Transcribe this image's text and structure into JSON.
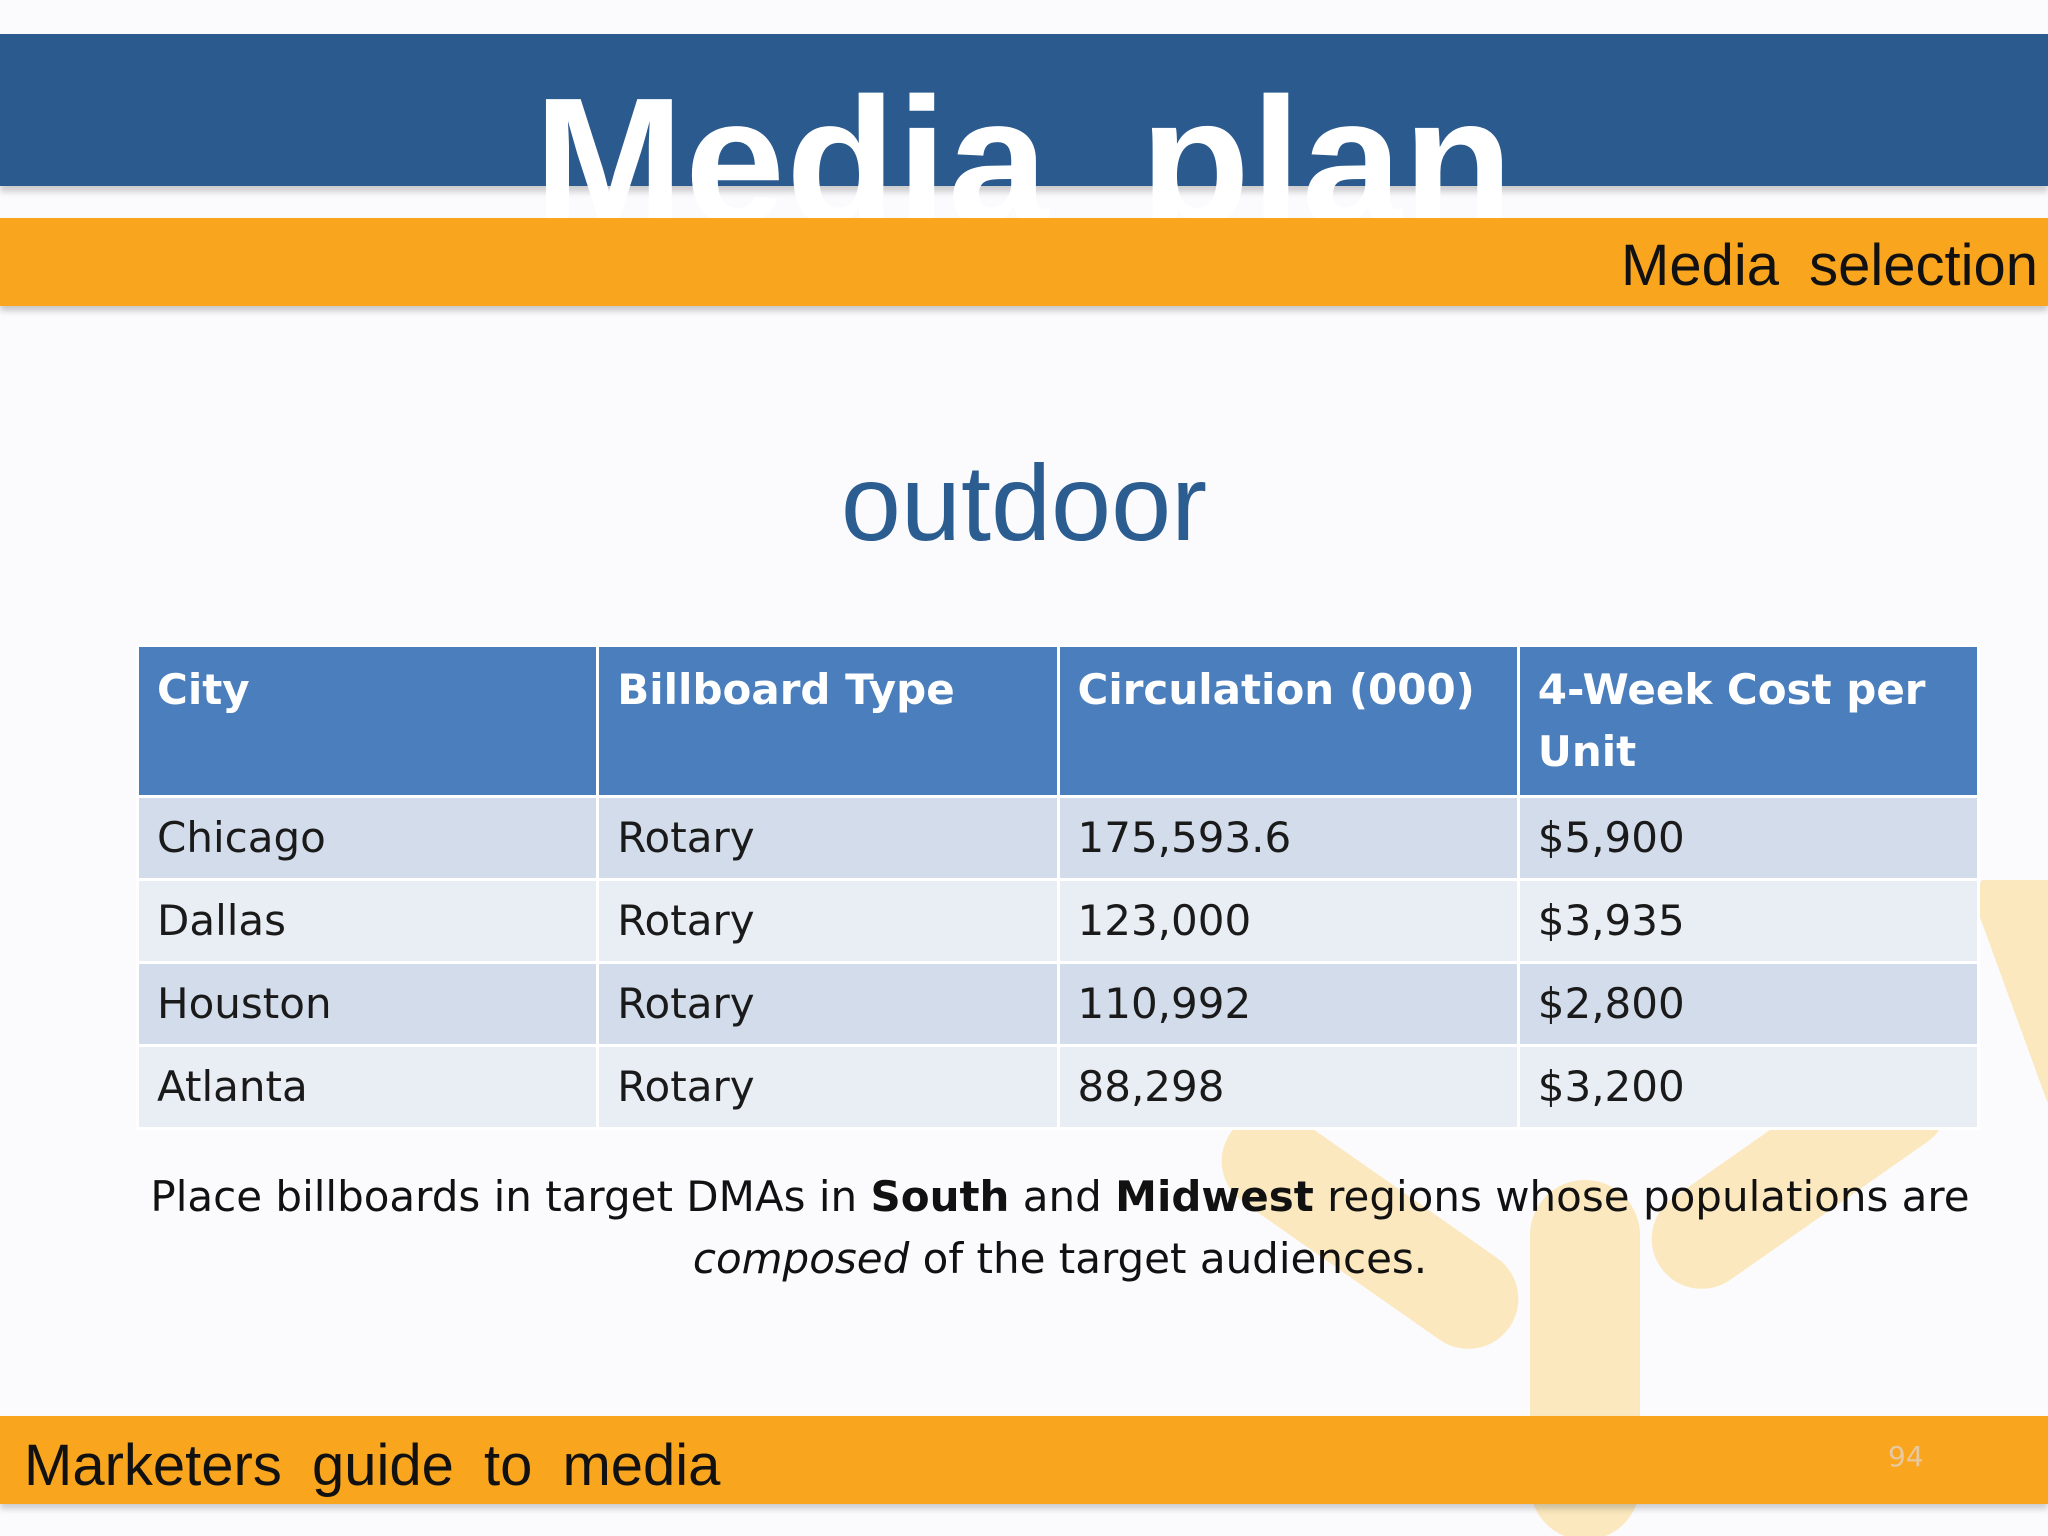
{
  "header": {
    "title": "Media  plan"
  },
  "subheader": {
    "label": "Media  selection"
  },
  "heading": "outdoor",
  "table": {
    "columns": [
      "City",
      "Billboard Type",
      "Circulation (000)",
      "4-Week Cost per Unit"
    ],
    "rows": [
      [
        "Chicago",
        "Rotary",
        "175,593.6",
        "$5,900"
      ],
      [
        "Dallas",
        "Rotary",
        "123,000",
        "$3,935"
      ],
      [
        "Houston",
        "Rotary",
        "110,992",
        "$2,800"
      ],
      [
        "Atlanta",
        "Rotary",
        "88,298",
        "$3,200"
      ]
    ]
  },
  "note": {
    "p1": "Place billboards in target DMAs in ",
    "b1": "South",
    "p2": " and ",
    "b2": "Midwest",
    "p3": " regions whose populations are ",
    "i1": "composed",
    "p4": " of the target audiences."
  },
  "footer": {
    "label": "Marketers  guide  to  media",
    "page_number": "94"
  },
  "colors": {
    "title_bar": "#2b5a8e",
    "accent_bar": "#f9a51d",
    "table_header": "#4a7ebc",
    "heading": "#2c5d91"
  }
}
